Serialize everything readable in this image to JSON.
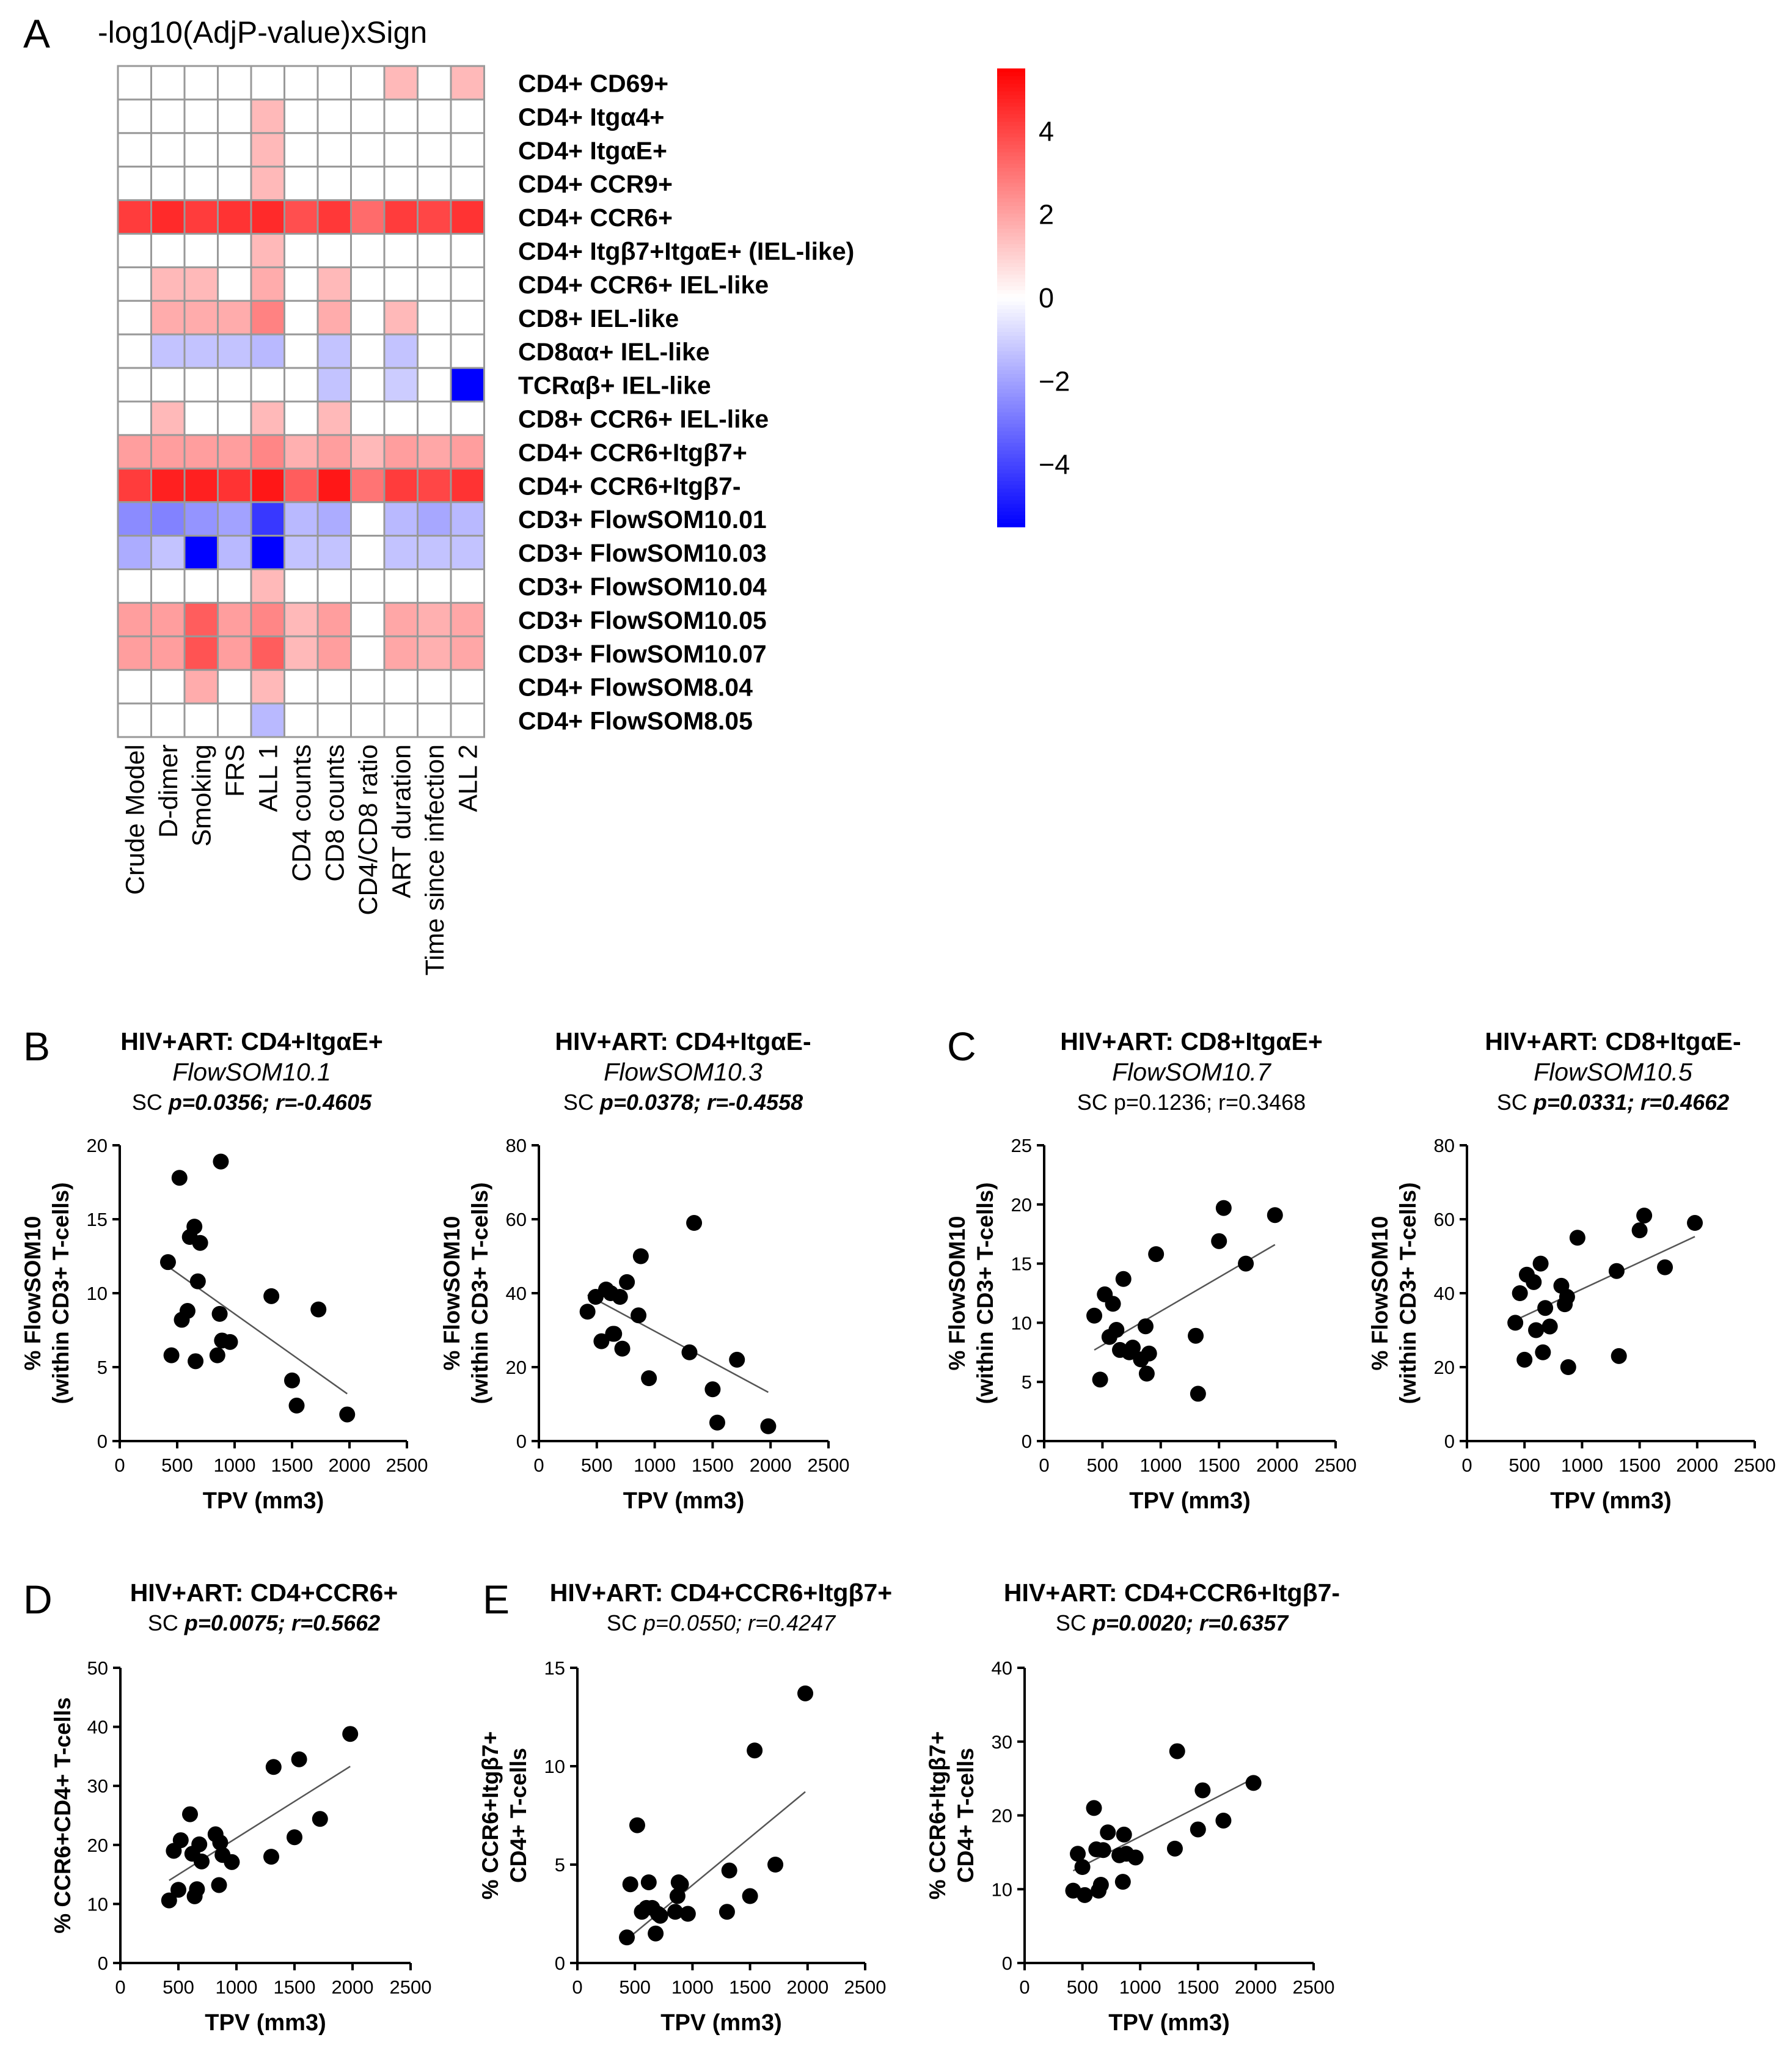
{
  "figure": {
    "panel_letters": [
      "A",
      "B",
      "C",
      "D",
      "E"
    ],
    "colors": {
      "positive": "#ff0000",
      "negative": "#0000ff",
      "neutral": "#ffffff",
      "grid": "#999999",
      "axis": "#000000",
      "point": "#000000",
      "trend": "#555555"
    }
  },
  "chart_data": [
    {
      "type": "heatmap",
      "panel": "A",
      "title": "-log10(AdjP-value)xSign",
      "columns": [
        "Crude Model",
        "D-dimer",
        "Smoking",
        "FRS",
        "ALL 1",
        "CD4 counts",
        "CD8 counts",
        "CD4/CD8 ratio",
        "ART duration",
        "Time since infection",
        "ALL 2"
      ],
      "rows": [
        "CD4+ CD69+",
        "CD4+ Itgα4+",
        "CD4+ ItgαE+",
        "CD4+ CCR9+",
        "CD4+ CCR6+",
        "CD4+ Itgβ7+ItgαE+ (IEL-like)",
        "CD4+ CCR6+ IEL-like",
        "CD8+ IEL-like",
        "CD8αα+ IEL-like",
        "TCRαβ+ IEL-like",
        "CD8+ CCR6+ IEL-like",
        "CD4+ CCR6+Itgβ7+",
        "CD4+ CCR6+Itgβ7-",
        "CD3+ FlowSOM10.01",
        "CD3+ FlowSOM10.03",
        "CD3+ FlowSOM10.04",
        "CD3+ FlowSOM10.05",
        "CD3+ FlowSOM10.07",
        "CD4+ FlowSOM8.04",
        "CD4+ FlowSOM8.05"
      ],
      "values": [
        [
          0,
          0,
          0,
          0,
          0,
          0,
          0,
          0,
          1.5,
          0,
          1.5
        ],
        [
          0,
          0,
          0,
          0,
          1.5,
          0,
          0,
          0,
          0,
          0,
          0
        ],
        [
          0,
          0,
          0,
          0,
          1.5,
          0,
          0,
          0,
          0,
          0,
          0
        ],
        [
          0,
          0,
          0,
          0,
          1.5,
          0,
          0,
          0,
          0,
          0,
          0
        ],
        [
          4.2,
          4.6,
          4.2,
          4.4,
          4.6,
          3.8,
          4.3,
          3.2,
          4.2,
          4.0,
          4.4
        ],
        [
          0,
          0,
          0,
          0,
          1.5,
          0,
          0,
          0,
          0,
          0,
          0
        ],
        [
          0,
          1.5,
          1.5,
          0,
          1.8,
          0,
          1.5,
          0,
          0,
          0,
          0
        ],
        [
          0,
          1.8,
          1.8,
          1.8,
          2.7,
          0,
          1.8,
          0,
          1.5,
          0,
          0
        ],
        [
          0,
          -1.3,
          -1.3,
          -1.3,
          -1.5,
          0,
          -1.3,
          0,
          -1.3,
          0,
          0
        ],
        [
          0,
          0,
          0,
          0,
          0,
          0,
          -1.3,
          0,
          -1.1,
          0,
          -5.5
        ],
        [
          0,
          1.5,
          0,
          0,
          1.5,
          0,
          1.5,
          0,
          0,
          0,
          0
        ],
        [
          2.1,
          2.1,
          2.1,
          2.1,
          2.6,
          1.7,
          2.1,
          1.5,
          2.1,
          1.9,
          2.1
        ],
        [
          4.2,
          4.8,
          4.8,
          4.4,
          5.0,
          3.5,
          5.0,
          3.0,
          4.2,
          4.0,
          4.4
        ],
        [
          -2.5,
          -2.7,
          -2.3,
          -2.0,
          -4.3,
          -1.5,
          -1.8,
          0,
          -1.5,
          -1.9,
          -1.5
        ],
        [
          -1.8,
          -1.3,
          -5.5,
          -1.5,
          -5.5,
          -1.3,
          -1.3,
          0,
          -1.3,
          -1.3,
          -1.3
        ],
        [
          0,
          0,
          0,
          0,
          1.5,
          0,
          0,
          0,
          0,
          0,
          0
        ],
        [
          2.1,
          2.1,
          3.5,
          2.1,
          2.6,
          1.5,
          2.1,
          0,
          1.9,
          1.7,
          1.9
        ],
        [
          2.1,
          2.1,
          3.7,
          2.1,
          3.5,
          1.5,
          2.1,
          0,
          1.9,
          1.7,
          1.9
        ],
        [
          0,
          0,
          1.8,
          0,
          1.5,
          0,
          0,
          0,
          0,
          0,
          0
        ],
        [
          0,
          0,
          0,
          0,
          -1.5,
          0,
          0,
          0,
          0,
          0,
          0
        ]
      ],
      "colorbar": {
        "range": [
          -5.5,
          5.5
        ],
        "ticks": [
          4,
          2,
          0,
          -2,
          -4
        ],
        "tick_labels": [
          "4",
          "2",
          "0",
          "−2",
          "−4"
        ]
      }
    },
    {
      "type": "scatter",
      "panel": "B",
      "title": "HIV+ART: CD4+ItgαE+",
      "subtitle": "FlowSOM10.1",
      "stat_prefix": "SC ",
      "stat": "p=0.0356; r=-0.4605",
      "stat_style": "bold-italic",
      "xlabel": "TPV (mm3)",
      "ylabel": [
        "% FlowSOM10",
        "(within CD3+ T-cells)"
      ],
      "xlim": [
        0,
        2500
      ],
      "ylim": [
        0,
        20
      ],
      "xticks": [
        0,
        500,
        1000,
        1500,
        2000,
        2500
      ],
      "yticks": [
        0,
        5,
        10,
        15,
        20
      ],
      "x": [
        420,
        450,
        520,
        540,
        590,
        610,
        650,
        660,
        680,
        700,
        850,
        870,
        880,
        890,
        960,
        1320,
        1500,
        1540,
        1730,
        1980
      ],
      "y": [
        12.1,
        5.8,
        17.8,
        8.2,
        8.8,
        13.8,
        14.5,
        5.4,
        10.8,
        13.4,
        5.8,
        8.6,
        18.9,
        6.8,
        6.7,
        9.8,
        4.1,
        2.4,
        8.9,
        1.8
      ],
      "trend": {
        "x": [
          420,
          1980
        ],
        "y": [
          11.8,
          3.2
        ]
      }
    },
    {
      "type": "scatter",
      "panel": "B",
      "title": "HIV+ART: CD4+ItgαE-",
      "subtitle": "FlowSOM10.3",
      "stat_prefix": "SC ",
      "stat": "p=0.0378; r=-0.4558",
      "stat_style": "bold-italic",
      "xlabel": "TPV (mm3)",
      "ylabel": [
        "% FlowSOM10",
        "(within CD3+ T-cells)"
      ],
      "xlim": [
        0,
        2500
      ],
      "ylim": [
        0,
        80
      ],
      "xticks": [
        0,
        500,
        1000,
        1500,
        2000,
        2500
      ],
      "yticks": [
        0,
        20,
        40,
        60,
        80
      ],
      "x": [
        420,
        490,
        540,
        580,
        620,
        640,
        650,
        700,
        720,
        760,
        860,
        880,
        950,
        1300,
        1340,
        1500,
        1540,
        1710,
        1980
      ],
      "y": [
        35,
        39,
        27,
        41,
        40,
        29,
        29,
        39,
        25,
        43,
        34,
        50,
        17,
        24,
        59,
        14,
        5,
        22,
        4
      ],
      "trend": {
        "x": [
          420,
          1980
        ],
        "y": [
          39.5,
          13.2
        ]
      }
    },
    {
      "type": "scatter",
      "panel": "C",
      "title": "HIV+ART: CD8+ItgαE+",
      "subtitle": "FlowSOM10.7",
      "stat_prefix": "SC ",
      "stat": "p=0.1236; r=0.3468",
      "stat_style": "normal",
      "xlabel": "TPV (mm3)",
      "ylabel": [
        "% FlowSOM10",
        "(within CD3+ T-cells)"
      ],
      "xlim": [
        0,
        2500
      ],
      "ylim": [
        0,
        25
      ],
      "xticks": [
        0,
        500,
        1000,
        1500,
        2000,
        2500
      ],
      "yticks": [
        0,
        5,
        10,
        15,
        20,
        25
      ],
      "x": [
        430,
        480,
        520,
        560,
        590,
        620,
        650,
        680,
        730,
        760,
        830,
        870,
        880,
        900,
        960,
        1300,
        1320,
        1500,
        1540,
        1730,
        1980
      ],
      "y": [
        10.6,
        5.2,
        12.4,
        8.8,
        11.6,
        9.4,
        7.7,
        13.7,
        7.5,
        7.9,
        6.9,
        9.7,
        5.7,
        7.4,
        15.8,
        8.9,
        4.0,
        16.9,
        19.7,
        15.0,
        19.1
      ],
      "trend": {
        "x": [
          430,
          1980
        ],
        "y": [
          7.7,
          16.6
        ]
      }
    },
    {
      "type": "scatter",
      "panel": "C",
      "title": "HIV+ART: CD8+ItgαE-",
      "subtitle": "FlowSOM10.5",
      "stat_prefix": "SC ",
      "stat": "p=0.0331; r=0.4662",
      "stat_style": "bold-italic",
      "xlabel": "TPV (mm3)",
      "ylabel": [
        "% FlowSOM10",
        "(within CD3+ T-cells)"
      ],
      "xlim": [
        0,
        2500
      ],
      "ylim": [
        0,
        80
      ],
      "xticks": [
        0,
        500,
        1000,
        1500,
        2000,
        2500
      ],
      "yticks": [
        0,
        20,
        40,
        60,
        80
      ],
      "x": [
        420,
        460,
        500,
        520,
        580,
        600,
        640,
        660,
        680,
        720,
        820,
        850,
        870,
        880,
        960,
        1300,
        1320,
        1500,
        1540,
        1720,
        1980
      ],
      "y": [
        32,
        40,
        22,
        45,
        43,
        30,
        48,
        24,
        36,
        31,
        42,
        37,
        39,
        20,
        55,
        46,
        23,
        57,
        61,
        47,
        59
      ],
      "trend": {
        "x": [
          420,
          1980
        ],
        "y": [
          32.7,
          55.3
        ]
      }
    },
    {
      "type": "scatter",
      "panel": "D",
      "title": "HIV+ART: CD4+CCR6+",
      "subtitle": "",
      "stat_prefix": "SC ",
      "stat": "p=0.0075; r=0.5662",
      "stat_style": "bold-italic",
      "xlabel": "TPV (mm3)",
      "ylabel": [
        "% CCR6+CD4+ T-cells"
      ],
      "xlim": [
        0,
        2500
      ],
      "ylim": [
        0,
        50
      ],
      "xticks": [
        0,
        500,
        1000,
        1500,
        2000,
        2500
      ],
      "yticks": [
        0,
        10,
        20,
        30,
        40,
        50
      ],
      "x": [
        420,
        460,
        500,
        520,
        600,
        620,
        640,
        660,
        680,
        700,
        820,
        850,
        860,
        880,
        960,
        1300,
        1320,
        1500,
        1540,
        1720,
        1980
      ],
      "y": [
        10.6,
        19,
        12.4,
        20.8,
        25.2,
        18.5,
        11.3,
        12.5,
        20.1,
        17.2,
        21.8,
        13.2,
        20.4,
        18.3,
        17.1,
        18.0,
        33.2,
        21.3,
        34.5,
        24.4,
        38.8
      ],
      "trend": {
        "x": [
          420,
          1980
        ],
        "y": [
          14.0,
          33.3
        ]
      }
    },
    {
      "type": "scatter",
      "panel": "E",
      "title": "HIV+ART: CD4+CCR6+Itgβ7+",
      "subtitle": "",
      "stat_prefix": "SC ",
      "stat": "p=0.0550; r=0.4247",
      "stat_style": "italic",
      "xlabel": "TPV (mm3)",
      "ylabel": [
        "% CCR6+Itgβ7+",
        "CD4+ T-cells"
      ],
      "xlim": [
        0,
        2500
      ],
      "ylim": [
        0,
        15
      ],
      "xticks": [
        0,
        500,
        1000,
        1500,
        2000,
        2500
      ],
      "yticks": [
        0,
        5,
        10,
        15
      ],
      "x": [
        430,
        460,
        520,
        560,
        600,
        620,
        650,
        680,
        700,
        720,
        850,
        870,
        880,
        900,
        960,
        1300,
        1320,
        1500,
        1540,
        1720,
        1980
      ],
      "y": [
        1.3,
        4.0,
        7.0,
        2.6,
        2.8,
        4.1,
        2.8,
        1.5,
        2.5,
        2.4,
        2.6,
        3.4,
        4.1,
        4.0,
        2.5,
        2.6,
        4.7,
        3.4,
        10.8,
        5.0,
        13.7
      ],
      "trend": {
        "x": [
          430,
          1980
        ],
        "y": [
          1.2,
          8.7
        ]
      }
    },
    {
      "type": "scatter",
      "panel": "E",
      "title": "HIV+ART: CD4+CCR6+Itgβ7-",
      "subtitle": "",
      "stat_prefix": "SC ",
      "stat": "p=0.0020; r=0.6357",
      "stat_style": "bold-italic",
      "xlabel": "TPV (mm3)",
      "ylabel": [
        "% CCR6+Itgβ7+",
        "CD4+ T-cells"
      ],
      "xlim": [
        0,
        2500
      ],
      "ylim": [
        0,
        40
      ],
      "xticks": [
        0,
        500,
        1000,
        1500,
        2000,
        2500
      ],
      "yticks": [
        0,
        10,
        20,
        30,
        40
      ],
      "x": [
        420,
        460,
        500,
        520,
        600,
        620,
        640,
        660,
        680,
        720,
        820,
        850,
        860,
        880,
        960,
        1300,
        1320,
        1500,
        1540,
        1720,
        1980
      ],
      "y": [
        9.8,
        14.8,
        13.0,
        9.2,
        21.0,
        15.4,
        9.8,
        10.6,
        15.3,
        17.7,
        14.6,
        11.0,
        17.4,
        14.8,
        14.3,
        15.5,
        28.7,
        18.1,
        23.4,
        19.3,
        24.4
      ],
      "trend": {
        "x": [
          420,
          1980
        ],
        "y": [
          12.5,
          25.0
        ]
      }
    }
  ]
}
